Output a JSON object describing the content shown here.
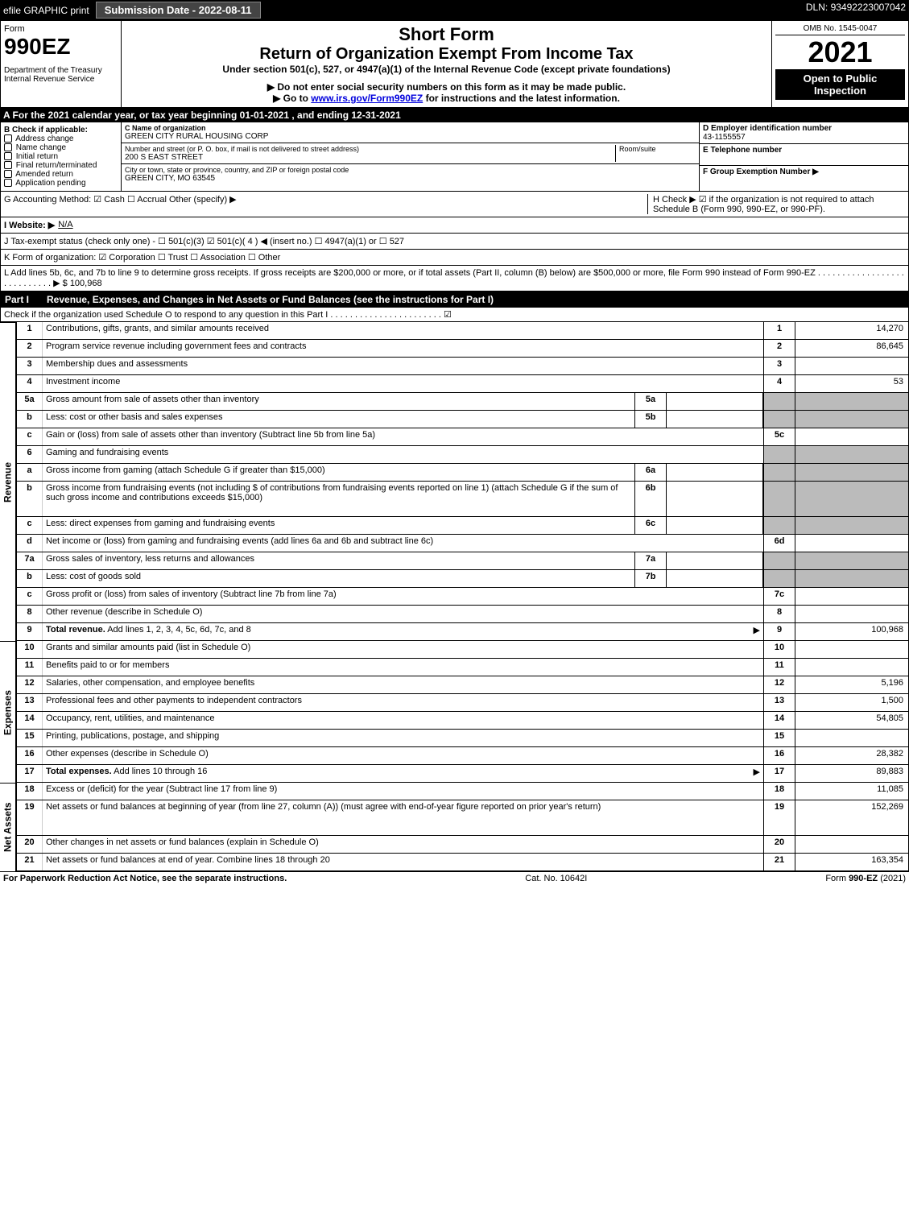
{
  "topbar": {
    "efile": "efile GRAPHIC print",
    "submission": "Submission Date - 2022-08-11",
    "dln": "DLN: 93492223007042"
  },
  "header": {
    "form_label": "Form",
    "form_number": "990EZ",
    "dept": "Department of the Treasury\nInternal Revenue Service",
    "short_form": "Short Form",
    "main_title": "Return of Organization Exempt From Income Tax",
    "sub1": "Under section 501(c), 527, or 4947(a)(1) of the Internal Revenue Code (except private foundations)",
    "sub2": "▶ Do not enter social security numbers on this form as it may be made public.",
    "sub3_pre": "▶ Go to ",
    "sub3_link": "www.irs.gov/Form990EZ",
    "sub3_post": " for instructions and the latest information.",
    "omb": "OMB No. 1545-0047",
    "year": "2021",
    "open": "Open to Public Inspection"
  },
  "row_a": "A  For the 2021 calendar year, or tax year beginning 01-01-2021 , and ending 12-31-2021",
  "col_b": {
    "title": "B  Check if applicable:",
    "items": [
      "Address change",
      "Name change",
      "Initial return",
      "Final return/terminated",
      "Amended return",
      "Application pending"
    ]
  },
  "col_c": {
    "name_label": "C Name of organization",
    "name": "GREEN CITY RURAL HOUSING CORP",
    "street_label": "Number and street (or P. O. box, if mail is not delivered to street address)",
    "room_label": "Room/suite",
    "street": "200 S EAST STREET",
    "city_label": "City or town, state or province, country, and ZIP or foreign postal code",
    "city": "GREEN CITY, MO  63545"
  },
  "col_def": {
    "d_label": "D Employer identification number",
    "d_val": "43-1155557",
    "e_label": "E Telephone number",
    "f_label": "F Group Exemption Number   ▶"
  },
  "meta": {
    "g": "G Accounting Method:   ☑ Cash  ☐ Accrual  Other (specify) ▶",
    "h": "H  Check ▶  ☑  if the organization is not required to attach Schedule B (Form 990, 990-EZ, or 990-PF).",
    "i_label": "I Website: ▶",
    "i_val": "N/A",
    "j": "J Tax-exempt status (check only one) - ☐ 501(c)(3) ☑ 501(c)( 4 ) ◀ (insert no.) ☐ 4947(a)(1) or ☐ 527",
    "k": "K Form of organization:  ☑ Corporation  ☐ Trust  ☐ Association  ☐ Other",
    "l": "L Add lines 5b, 6c, and 7b to line 9 to determine gross receipts. If gross receipts are $200,000 or more, or if total assets (Part II, column (B) below) are $500,000 or more, file Form 990 instead of Form 990-EZ . . . . . . . . . . . . . . . . . . . . . . . . . . . . ▶ $ 100,968"
  },
  "part1": {
    "label": "Part I",
    "title": "Revenue, Expenses, and Changes in Net Assets or Fund Balances (see the instructions for Part I)",
    "check": "Check if the organization used Schedule O to respond to any question in this Part I . . . . . . . . . . . . . . . . . . . . . . . ☑"
  },
  "sections": {
    "revenue": "Revenue",
    "expenses": "Expenses",
    "netassets": "Net Assets"
  },
  "lines": [
    {
      "n": "1",
      "d": "Contributions, gifts, grants, and similar amounts received",
      "ref": "1",
      "val": "14,270",
      "sec": "revenue"
    },
    {
      "n": "2",
      "d": "Program service revenue including government fees and contracts",
      "ref": "2",
      "val": "86,645",
      "sec": "revenue"
    },
    {
      "n": "3",
      "d": "Membership dues and assessments",
      "ref": "3",
      "val": "",
      "sec": "revenue"
    },
    {
      "n": "4",
      "d": "Investment income",
      "ref": "4",
      "val": "53",
      "sec": "revenue"
    },
    {
      "n": "5a",
      "d": "Gross amount from sale of assets other than inventory",
      "mid": "5a",
      "midval": "",
      "gray": true,
      "sec": "revenue"
    },
    {
      "n": "b",
      "d": "Less: cost or other basis and sales expenses",
      "mid": "5b",
      "midval": "",
      "gray": true,
      "sec": "revenue"
    },
    {
      "n": "c",
      "d": "Gain or (loss) from sale of assets other than inventory (Subtract line 5b from line 5a)",
      "ref": "5c",
      "val": "",
      "sec": "revenue"
    },
    {
      "n": "6",
      "d": "Gaming and fundraising events",
      "noval": true,
      "gray": true,
      "sec": "revenue"
    },
    {
      "n": "a",
      "d": "Gross income from gaming (attach Schedule G if greater than $15,000)",
      "mid": "6a",
      "midval": "",
      "gray": true,
      "sec": "revenue"
    },
    {
      "n": "b",
      "d": "Gross income from fundraising events (not including $                   of contributions from fundraising events reported on line 1) (attach Schedule G if the sum of such gross income and contributions exceeds $15,000)",
      "mid": "6b",
      "midval": "",
      "gray": true,
      "sec": "revenue",
      "tall": true
    },
    {
      "n": "c",
      "d": "Less: direct expenses from gaming and fundraising events",
      "mid": "6c",
      "midval": "",
      "gray": true,
      "sec": "revenue"
    },
    {
      "n": "d",
      "d": "Net income or (loss) from gaming and fundraising events (add lines 6a and 6b and subtract line 6c)",
      "ref": "6d",
      "val": "",
      "sec": "revenue"
    },
    {
      "n": "7a",
      "d": "Gross sales of inventory, less returns and allowances",
      "mid": "7a",
      "midval": "",
      "gray": true,
      "sec": "revenue"
    },
    {
      "n": "b",
      "d": "Less: cost of goods sold",
      "mid": "7b",
      "midval": "",
      "gray": true,
      "sec": "revenue"
    },
    {
      "n": "c",
      "d": "Gross profit or (loss) from sales of inventory (Subtract line 7b from line 7a)",
      "ref": "7c",
      "val": "",
      "sec": "revenue"
    },
    {
      "n": "8",
      "d": "Other revenue (describe in Schedule O)",
      "ref": "8",
      "val": "",
      "sec": "revenue"
    },
    {
      "n": "9",
      "d": "Total revenue. Add lines 1, 2, 3, 4, 5c, 6d, 7c, and 8",
      "ref": "9",
      "val": "100,968",
      "bold": true,
      "arrow": true,
      "sec": "revenue"
    },
    {
      "n": "10",
      "d": "Grants and similar amounts paid (list in Schedule O)",
      "ref": "10",
      "val": "",
      "sec": "expenses"
    },
    {
      "n": "11",
      "d": "Benefits paid to or for members",
      "ref": "11",
      "val": "",
      "sec": "expenses"
    },
    {
      "n": "12",
      "d": "Salaries, other compensation, and employee benefits",
      "ref": "12",
      "val": "5,196",
      "sec": "expenses"
    },
    {
      "n": "13",
      "d": "Professional fees and other payments to independent contractors",
      "ref": "13",
      "val": "1,500",
      "sec": "expenses"
    },
    {
      "n": "14",
      "d": "Occupancy, rent, utilities, and maintenance",
      "ref": "14",
      "val": "54,805",
      "sec": "expenses"
    },
    {
      "n": "15",
      "d": "Printing, publications, postage, and shipping",
      "ref": "15",
      "val": "",
      "sec": "expenses"
    },
    {
      "n": "16",
      "d": "Other expenses (describe in Schedule O)",
      "ref": "16",
      "val": "28,382",
      "sec": "expenses"
    },
    {
      "n": "17",
      "d": "Total expenses. Add lines 10 through 16",
      "ref": "17",
      "val": "89,883",
      "bold": true,
      "arrow": true,
      "sec": "expenses"
    },
    {
      "n": "18",
      "d": "Excess or (deficit) for the year (Subtract line 17 from line 9)",
      "ref": "18",
      "val": "11,085",
      "sec": "netassets"
    },
    {
      "n": "19",
      "d": "Net assets or fund balances at beginning of year (from line 27, column (A)) (must agree with end-of-year figure reported on prior year's return)",
      "ref": "19",
      "val": "152,269",
      "sec": "netassets",
      "tall": true
    },
    {
      "n": "20",
      "d": "Other changes in net assets or fund balances (explain in Schedule O)",
      "ref": "20",
      "val": "",
      "sec": "netassets"
    },
    {
      "n": "21",
      "d": "Net assets or fund balances at end of year. Combine lines 18 through 20",
      "ref": "21",
      "val": "163,354",
      "sec": "netassets"
    }
  ],
  "footer": {
    "left": "For Paperwork Reduction Act Notice, see the separate instructions.",
    "mid": "Cat. No. 10642I",
    "right": "Form 990-EZ (2021)"
  }
}
